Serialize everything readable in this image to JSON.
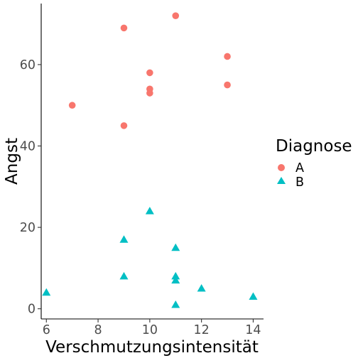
{
  "chart_data": {
    "type": "scatter",
    "title": "",
    "xlabel": "Verschmutzungsintensität",
    "ylabel": "Angst",
    "xlim": [
      5.8,
      14.4
    ],
    "ylim": [
      -2.5,
      75
    ],
    "x_ticks": [
      "6",
      "8",
      "10",
      "12",
      "14"
    ],
    "y_ticks": [
      "0",
      "20",
      "40",
      "60"
    ],
    "grid": false,
    "legend": {
      "title": "Diagnose",
      "position": "right",
      "entries": [
        "A",
        "B"
      ]
    },
    "series": [
      {
        "name": "A",
        "marker": "circle",
        "color": "#F8766D",
        "points": [
          {
            "x": 7,
            "y": 50
          },
          {
            "x": 9,
            "y": 69
          },
          {
            "x": 9,
            "y": 45
          },
          {
            "x": 10,
            "y": 58
          },
          {
            "x": 10,
            "y": 54
          },
          {
            "x": 10,
            "y": 53
          },
          {
            "x": 11,
            "y": 72
          },
          {
            "x": 13,
            "y": 62
          },
          {
            "x": 13,
            "y": 55
          }
        ]
      },
      {
        "name": "B",
        "marker": "triangle",
        "color": "#00BFC4",
        "points": [
          {
            "x": 6,
            "y": 4
          },
          {
            "x": 9,
            "y": 17
          },
          {
            "x": 9,
            "y": 8
          },
          {
            "x": 10,
            "y": 24
          },
          {
            "x": 11,
            "y": 15
          },
          {
            "x": 11,
            "y": 8
          },
          {
            "x": 11,
            "y": 7
          },
          {
            "x": 11,
            "y": 1
          },
          {
            "x": 12,
            "y": 5
          },
          {
            "x": 14,
            "y": 3
          }
        ]
      }
    ]
  }
}
